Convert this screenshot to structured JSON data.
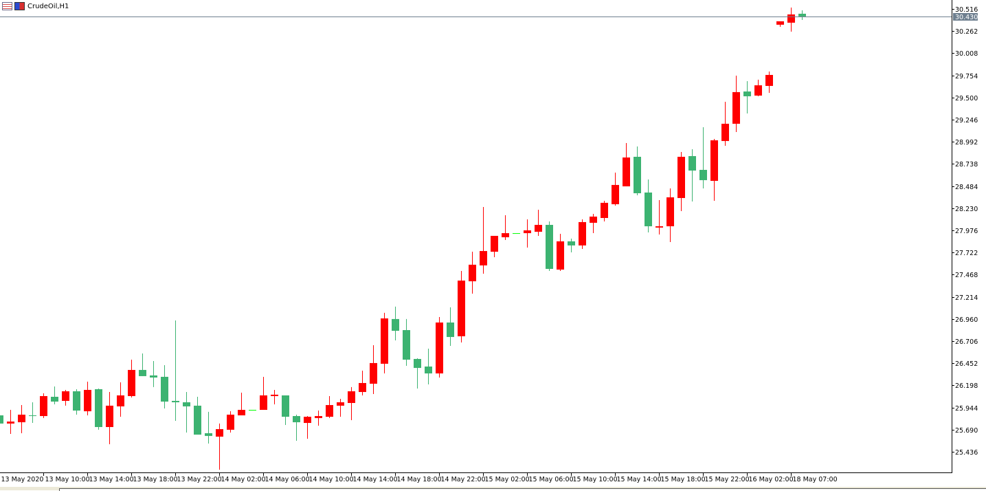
{
  "window": {
    "title": "CrudeOil,H1"
  },
  "colors": {
    "bull": "#ff0000",
    "bear": "#3cb371",
    "doji": "#00ff00",
    "price_line": "#6e7f8f",
    "axis": "#000000"
  },
  "icons": [
    "chart-window-icon",
    "symbol-icon"
  ],
  "chart_data": {
    "type": "candlestick",
    "symbol": "CrudeOil",
    "timeframe": "H1",
    "ylim": [
      25.32,
      30.62
    ],
    "grid": false,
    "current_price": "30.430",
    "y_ticks": [
      "30.516",
      "30.262",
      "30.008",
      "29.754",
      "29.500",
      "29.246",
      "28.992",
      "28.738",
      "28.484",
      "28.230",
      "27.976",
      "27.722",
      "27.468",
      "27.214",
      "26.960",
      "26.706",
      "26.452",
      "26.198",
      "25.944",
      "25.690",
      "25.436"
    ],
    "x_tick_labels": [
      {
        "bar": 0,
        "label": "13 May 2020"
      },
      {
        "bar": 4,
        "label": "13 May 10:00"
      },
      {
        "bar": 8,
        "label": "13 May 14:00"
      },
      {
        "bar": 12,
        "label": "13 May 18:00"
      },
      {
        "bar": 16,
        "label": "13 May 22:00"
      },
      {
        "bar": 20,
        "label": "14 May 02:00"
      },
      {
        "bar": 24,
        "label": "14 May 06:00"
      },
      {
        "bar": 28,
        "label": "14 May 10:00"
      },
      {
        "bar": 32,
        "label": "14 May 14:00"
      },
      {
        "bar": 36,
        "label": "14 May 18:00"
      },
      {
        "bar": 40,
        "label": "14 May 22:00"
      },
      {
        "bar": 44,
        "label": "15 May 02:00"
      },
      {
        "bar": 48,
        "label": "15 May 06:00"
      },
      {
        "bar": 52,
        "label": "15 May 10:00"
      },
      {
        "bar": 56,
        "label": "15 May 14:00"
      },
      {
        "bar": 60,
        "label": "15 May 18:00"
      },
      {
        "bar": 64,
        "label": "15 May 22:00"
      },
      {
        "bar": 68,
        "label": "16 May 02:00"
      },
      {
        "bar": 72,
        "label": "18 May 07:00"
      }
    ],
    "candles": [
      [
        25.854,
        25.854,
        25.76,
        25.76
      ],
      [
        25.76,
        25.917,
        25.641,
        25.783
      ],
      [
        25.775,
        25.972,
        25.649,
        25.862
      ],
      [
        25.854,
        26.004,
        25.767,
        25.85
      ],
      [
        25.846,
        26.107,
        25.823,
        26.075
      ],
      [
        26.067,
        26.185,
        25.98,
        26.012
      ],
      [
        26.02,
        26.146,
        25.965,
        26.13
      ],
      [
        26.13,
        26.154,
        25.862,
        25.909
      ],
      [
        25.901,
        26.241,
        25.854,
        26.146
      ],
      [
        26.154,
        26.162,
        25.689,
        25.72
      ],
      [
        25.72,
        26.122,
        25.523,
        25.965
      ],
      [
        25.957,
        26.233,
        25.838,
        26.083
      ],
      [
        26.075,
        26.493,
        26.059,
        26.375
      ],
      [
        26.375,
        26.564,
        26.304,
        26.304
      ],
      [
        26.312,
        26.477,
        26.178,
        26.288
      ],
      [
        26.296,
        26.43,
        25.933,
        26.012
      ],
      [
        26.02,
        26.943,
        25.791,
        26.004
      ],
      [
        26.004,
        26.122,
        25.657,
        25.957
      ],
      [
        25.965,
        26.067,
        25.633,
        25.633
      ],
      [
        25.649,
        25.894,
        25.531,
        25.618
      ],
      [
        25.61,
        25.76,
        25.231,
        25.696
      ],
      [
        25.689,
        25.901,
        25.657,
        25.862
      ],
      [
        25.854,
        26.114,
        25.854,
        25.917
      ],
      [
        25.917,
        25.917,
        25.917,
        25.917
      ],
      [
        25.917,
        26.296,
        25.917,
        26.083
      ],
      [
        26.075,
        26.146,
        25.98,
        26.091
      ],
      [
        26.083,
        26.083,
        25.744,
        25.838
      ],
      [
        25.846,
        25.862,
        25.562,
        25.775
      ],
      [
        25.767,
        25.846,
        25.586,
        25.838
      ],
      [
        25.823,
        25.909,
        25.736,
        25.846
      ],
      [
        25.838,
        26.075,
        25.823,
        25.972
      ],
      [
        25.965,
        26.043,
        25.838,
        26.004
      ],
      [
        25.996,
        26.178,
        25.799,
        26.13
      ],
      [
        26.122,
        26.367,
        26.083,
        26.225
      ],
      [
        26.217,
        26.659,
        26.099,
        26.454
      ],
      [
        26.446,
        27.03,
        26.335,
        26.966
      ],
      [
        26.959,
        27.101,
        26.714,
        26.824
      ],
      [
        26.832,
        26.959,
        26.422,
        26.493
      ],
      [
        26.501,
        26.509,
        26.162,
        26.398
      ],
      [
        26.414,
        26.619,
        26.209,
        26.335
      ],
      [
        26.335,
        26.982,
        26.288,
        26.919
      ],
      [
        26.919,
        27.093,
        26.651,
        26.753
      ],
      [
        26.761,
        27.511,
        26.69,
        27.4
      ],
      [
        27.392,
        27.731,
        27.25,
        27.582
      ],
      [
        27.574,
        28.244,
        27.479,
        27.739
      ],
      [
        27.731,
        27.913,
        27.668,
        27.913
      ],
      [
        27.897,
        28.15,
        27.866,
        27.944
      ],
      [
        27.944,
        27.944,
        27.944,
        27.944
      ],
      [
        27.944,
        28.102,
        27.779,
        27.976
      ],
      [
        27.96,
        28.213,
        27.913,
        28.039
      ],
      [
        28.039,
        28.079,
        27.511,
        27.534
      ],
      [
        27.526,
        27.937,
        27.511,
        27.85
      ],
      [
        27.85,
        27.881,
        27.724,
        27.803
      ],
      [
        27.803,
        28.102,
        27.763,
        28.071
      ],
      [
        28.063,
        28.165,
        27.944,
        28.134
      ],
      [
        28.118,
        28.315,
        28.079,
        28.292
      ],
      [
        28.276,
        28.639,
        28.26,
        28.497
      ],
      [
        28.481,
        28.978,
        28.481,
        28.812
      ],
      [
        28.82,
        28.938,
        28.378,
        28.402
      ],
      [
        28.41,
        28.56,
        27.952,
        28.023
      ],
      [
        28.008,
        28.323,
        27.929,
        28.023
      ],
      [
        28.023,
        28.457,
        27.842,
        28.355
      ],
      [
        28.347,
        28.875,
        28.197,
        28.82
      ],
      [
        28.828,
        28.907,
        28.307,
        28.662
      ],
      [
        28.67,
        29.159,
        28.457,
        28.552
      ],
      [
        28.544,
        29.025,
        28.315,
        29.009
      ],
      [
        29.001,
        29.451,
        28.946,
        29.199
      ],
      [
        29.199,
        29.751,
        29.104,
        29.562
      ],
      [
        29.569,
        29.688,
        29.317,
        29.514
      ],
      [
        29.522,
        29.704,
        29.514,
        29.64
      ],
      [
        29.633,
        29.798,
        29.554,
        29.759
      ],
      [
        30.335,
        30.374,
        30.311,
        30.374
      ],
      [
        30.358,
        30.532,
        30.256,
        30.453
      ],
      [
        30.461,
        30.5,
        30.39,
        30.43
      ]
    ],
    "candle_fields": [
      "open",
      "high",
      "low",
      "close"
    ]
  }
}
